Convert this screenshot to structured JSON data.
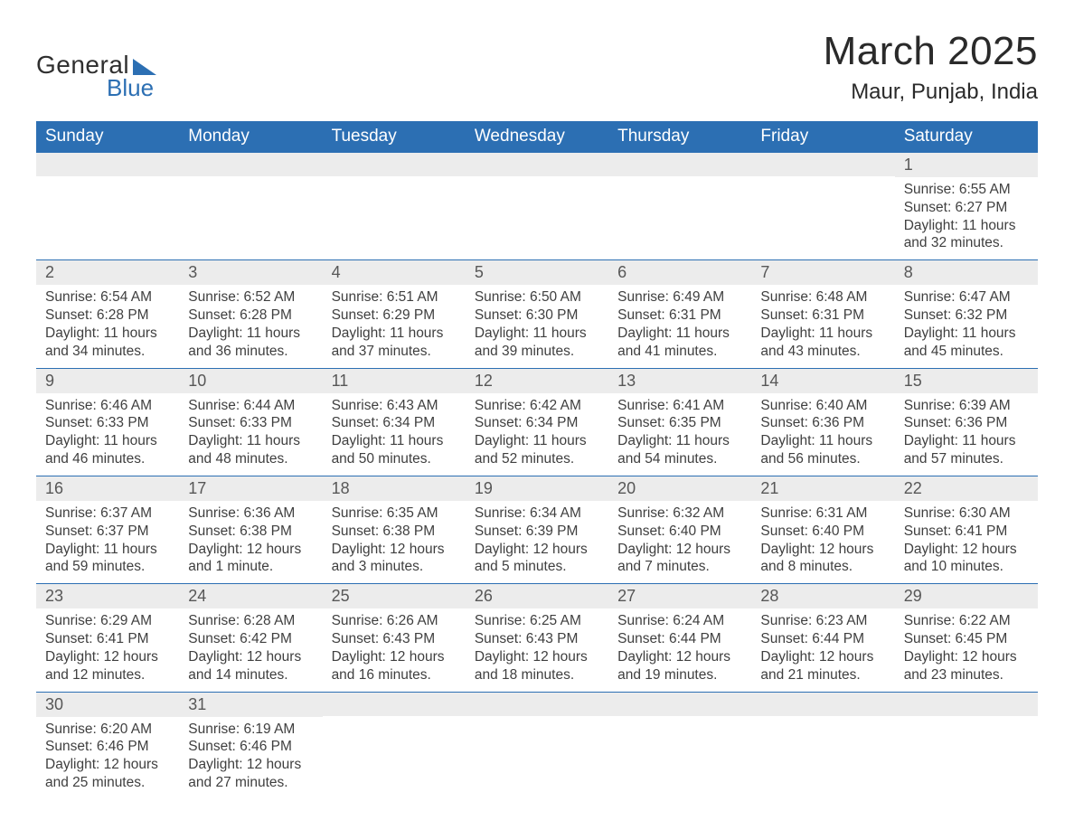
{
  "brand": {
    "general": "General",
    "blue": "Blue"
  },
  "title": "March 2025",
  "location": "Maur, Punjab, India",
  "colors": {
    "accent": "#2c6fb3",
    "header_row_bg": "#2c6fb3",
    "header_row_text": "#ffffff",
    "day_num_bg": "#ececec",
    "day_num_text": "#575757",
    "body_text": "#3f3f3f",
    "page_bg": "#ffffff",
    "cell_border": "#2c6fb3"
  },
  "typography": {
    "title_fontsize_pt": 33,
    "location_fontsize_pt": 18,
    "weekday_fontsize_pt": 14,
    "daynum_fontsize_pt": 13,
    "body_fontsize_pt": 12,
    "font_family": "Arial"
  },
  "layout": {
    "columns": 7,
    "rows": 6,
    "column_width_pct": 14.28
  },
  "weekdays": [
    "Sunday",
    "Monday",
    "Tuesday",
    "Wednesday",
    "Thursday",
    "Friday",
    "Saturday"
  ],
  "weeks": [
    [
      {
        "blank": true
      },
      {
        "blank": true
      },
      {
        "blank": true
      },
      {
        "blank": true
      },
      {
        "blank": true
      },
      {
        "blank": true
      },
      {
        "num": "1",
        "sunrise": "Sunrise: 6:55 AM",
        "sunset": "Sunset: 6:27 PM",
        "daylight1": "Daylight: 11 hours",
        "daylight2": "and 32 minutes."
      }
    ],
    [
      {
        "num": "2",
        "sunrise": "Sunrise: 6:54 AM",
        "sunset": "Sunset: 6:28 PM",
        "daylight1": "Daylight: 11 hours",
        "daylight2": "and 34 minutes."
      },
      {
        "num": "3",
        "sunrise": "Sunrise: 6:52 AM",
        "sunset": "Sunset: 6:28 PM",
        "daylight1": "Daylight: 11 hours",
        "daylight2": "and 36 minutes."
      },
      {
        "num": "4",
        "sunrise": "Sunrise: 6:51 AM",
        "sunset": "Sunset: 6:29 PM",
        "daylight1": "Daylight: 11 hours",
        "daylight2": "and 37 minutes."
      },
      {
        "num": "5",
        "sunrise": "Sunrise: 6:50 AM",
        "sunset": "Sunset: 6:30 PM",
        "daylight1": "Daylight: 11 hours",
        "daylight2": "and 39 minutes."
      },
      {
        "num": "6",
        "sunrise": "Sunrise: 6:49 AM",
        "sunset": "Sunset: 6:31 PM",
        "daylight1": "Daylight: 11 hours",
        "daylight2": "and 41 minutes."
      },
      {
        "num": "7",
        "sunrise": "Sunrise: 6:48 AM",
        "sunset": "Sunset: 6:31 PM",
        "daylight1": "Daylight: 11 hours",
        "daylight2": "and 43 minutes."
      },
      {
        "num": "8",
        "sunrise": "Sunrise: 6:47 AM",
        "sunset": "Sunset: 6:32 PM",
        "daylight1": "Daylight: 11 hours",
        "daylight2": "and 45 minutes."
      }
    ],
    [
      {
        "num": "9",
        "sunrise": "Sunrise: 6:46 AM",
        "sunset": "Sunset: 6:33 PM",
        "daylight1": "Daylight: 11 hours",
        "daylight2": "and 46 minutes."
      },
      {
        "num": "10",
        "sunrise": "Sunrise: 6:44 AM",
        "sunset": "Sunset: 6:33 PM",
        "daylight1": "Daylight: 11 hours",
        "daylight2": "and 48 minutes."
      },
      {
        "num": "11",
        "sunrise": "Sunrise: 6:43 AM",
        "sunset": "Sunset: 6:34 PM",
        "daylight1": "Daylight: 11 hours",
        "daylight2": "and 50 minutes."
      },
      {
        "num": "12",
        "sunrise": "Sunrise: 6:42 AM",
        "sunset": "Sunset: 6:34 PM",
        "daylight1": "Daylight: 11 hours",
        "daylight2": "and 52 minutes."
      },
      {
        "num": "13",
        "sunrise": "Sunrise: 6:41 AM",
        "sunset": "Sunset: 6:35 PM",
        "daylight1": "Daylight: 11 hours",
        "daylight2": "and 54 minutes."
      },
      {
        "num": "14",
        "sunrise": "Sunrise: 6:40 AM",
        "sunset": "Sunset: 6:36 PM",
        "daylight1": "Daylight: 11 hours",
        "daylight2": "and 56 minutes."
      },
      {
        "num": "15",
        "sunrise": "Sunrise: 6:39 AM",
        "sunset": "Sunset: 6:36 PM",
        "daylight1": "Daylight: 11 hours",
        "daylight2": "and 57 minutes."
      }
    ],
    [
      {
        "num": "16",
        "sunrise": "Sunrise: 6:37 AM",
        "sunset": "Sunset: 6:37 PM",
        "daylight1": "Daylight: 11 hours",
        "daylight2": "and 59 minutes."
      },
      {
        "num": "17",
        "sunrise": "Sunrise: 6:36 AM",
        "sunset": "Sunset: 6:38 PM",
        "daylight1": "Daylight: 12 hours",
        "daylight2": "and 1 minute."
      },
      {
        "num": "18",
        "sunrise": "Sunrise: 6:35 AM",
        "sunset": "Sunset: 6:38 PM",
        "daylight1": "Daylight: 12 hours",
        "daylight2": "and 3 minutes."
      },
      {
        "num": "19",
        "sunrise": "Sunrise: 6:34 AM",
        "sunset": "Sunset: 6:39 PM",
        "daylight1": "Daylight: 12 hours",
        "daylight2": "and 5 minutes."
      },
      {
        "num": "20",
        "sunrise": "Sunrise: 6:32 AM",
        "sunset": "Sunset: 6:40 PM",
        "daylight1": "Daylight: 12 hours",
        "daylight2": "and 7 minutes."
      },
      {
        "num": "21",
        "sunrise": "Sunrise: 6:31 AM",
        "sunset": "Sunset: 6:40 PM",
        "daylight1": "Daylight: 12 hours",
        "daylight2": "and 8 minutes."
      },
      {
        "num": "22",
        "sunrise": "Sunrise: 6:30 AM",
        "sunset": "Sunset: 6:41 PM",
        "daylight1": "Daylight: 12 hours",
        "daylight2": "and 10 minutes."
      }
    ],
    [
      {
        "num": "23",
        "sunrise": "Sunrise: 6:29 AM",
        "sunset": "Sunset: 6:41 PM",
        "daylight1": "Daylight: 12 hours",
        "daylight2": "and 12 minutes."
      },
      {
        "num": "24",
        "sunrise": "Sunrise: 6:28 AM",
        "sunset": "Sunset: 6:42 PM",
        "daylight1": "Daylight: 12 hours",
        "daylight2": "and 14 minutes."
      },
      {
        "num": "25",
        "sunrise": "Sunrise: 6:26 AM",
        "sunset": "Sunset: 6:43 PM",
        "daylight1": "Daylight: 12 hours",
        "daylight2": "and 16 minutes."
      },
      {
        "num": "26",
        "sunrise": "Sunrise: 6:25 AM",
        "sunset": "Sunset: 6:43 PM",
        "daylight1": "Daylight: 12 hours",
        "daylight2": "and 18 minutes."
      },
      {
        "num": "27",
        "sunrise": "Sunrise: 6:24 AM",
        "sunset": "Sunset: 6:44 PM",
        "daylight1": "Daylight: 12 hours",
        "daylight2": "and 19 minutes."
      },
      {
        "num": "28",
        "sunrise": "Sunrise: 6:23 AM",
        "sunset": "Sunset: 6:44 PM",
        "daylight1": "Daylight: 12 hours",
        "daylight2": "and 21 minutes."
      },
      {
        "num": "29",
        "sunrise": "Sunrise: 6:22 AM",
        "sunset": "Sunset: 6:45 PM",
        "daylight1": "Daylight: 12 hours",
        "daylight2": "and 23 minutes."
      }
    ],
    [
      {
        "num": "30",
        "sunrise": "Sunrise: 6:20 AM",
        "sunset": "Sunset: 6:46 PM",
        "daylight1": "Daylight: 12 hours",
        "daylight2": "and 25 minutes."
      },
      {
        "num": "31",
        "sunrise": "Sunrise: 6:19 AM",
        "sunset": "Sunset: 6:46 PM",
        "daylight1": "Daylight: 12 hours",
        "daylight2": "and 27 minutes."
      },
      {
        "blank": true
      },
      {
        "blank": true
      },
      {
        "blank": true
      },
      {
        "blank": true
      },
      {
        "blank": true
      }
    ]
  ]
}
